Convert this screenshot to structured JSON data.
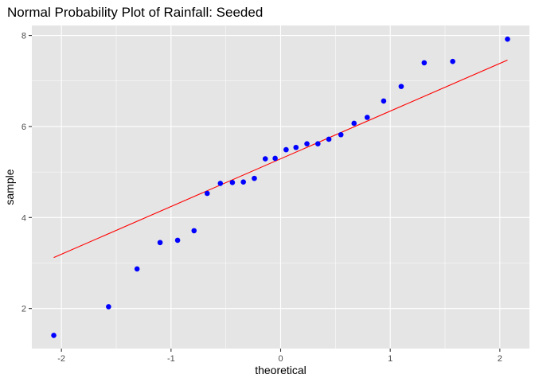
{
  "chart_data": {
    "type": "scatter",
    "title": "Normal Probability Plot of Rainfall: Seeded",
    "xlabel": "theoretical",
    "ylabel": "sample",
    "xlim": [
      -2.27,
      2.27
    ],
    "ylim": [
      1.12,
      8.22
    ],
    "x_ticks": [
      -2,
      -1,
      0,
      1,
      2
    ],
    "x_tick_labels": [
      "-2",
      "-1",
      "0",
      "1",
      "2"
    ],
    "y_ticks": [
      2,
      4,
      6,
      8
    ],
    "y_tick_labels": [
      "2",
      "4",
      "6",
      "8"
    ],
    "grid": true,
    "panel_background": "#e5e5e5",
    "grid_color": "#ffffff",
    "point_color": "#0000ff",
    "line_color": "#ff0000",
    "points": [
      {
        "x": -2.07,
        "y": 1.41
      },
      {
        "x": -1.57,
        "y": 2.04
      },
      {
        "x": -1.31,
        "y": 2.87
      },
      {
        "x": -1.1,
        "y": 3.45
      },
      {
        "x": -0.94,
        "y": 3.5
      },
      {
        "x": -0.79,
        "y": 3.71
      },
      {
        "x": -0.67,
        "y": 4.53
      },
      {
        "x": -0.55,
        "y": 4.75
      },
      {
        "x": -0.44,
        "y": 4.77
      },
      {
        "x": -0.34,
        "y": 4.78
      },
      {
        "x": -0.24,
        "y": 4.86
      },
      {
        "x": -0.14,
        "y": 5.29
      },
      {
        "x": -0.05,
        "y": 5.3
      },
      {
        "x": 0.05,
        "y": 5.49
      },
      {
        "x": 0.14,
        "y": 5.54
      },
      {
        "x": 0.24,
        "y": 5.62
      },
      {
        "x": 0.34,
        "y": 5.62
      },
      {
        "x": 0.44,
        "y": 5.72
      },
      {
        "x": 0.55,
        "y": 5.82
      },
      {
        "x": 0.67,
        "y": 6.07
      },
      {
        "x": 0.79,
        "y": 6.2
      },
      {
        "x": 0.94,
        "y": 6.56
      },
      {
        "x": 1.1,
        "y": 6.88
      },
      {
        "x": 1.31,
        "y": 7.4
      },
      {
        "x": 1.57,
        "y": 7.43
      },
      {
        "x": 2.07,
        "y": 7.92
      }
    ],
    "reference_line": {
      "x": [
        -2.07,
        2.07
      ],
      "y": [
        3.12,
        7.46
      ]
    }
  }
}
